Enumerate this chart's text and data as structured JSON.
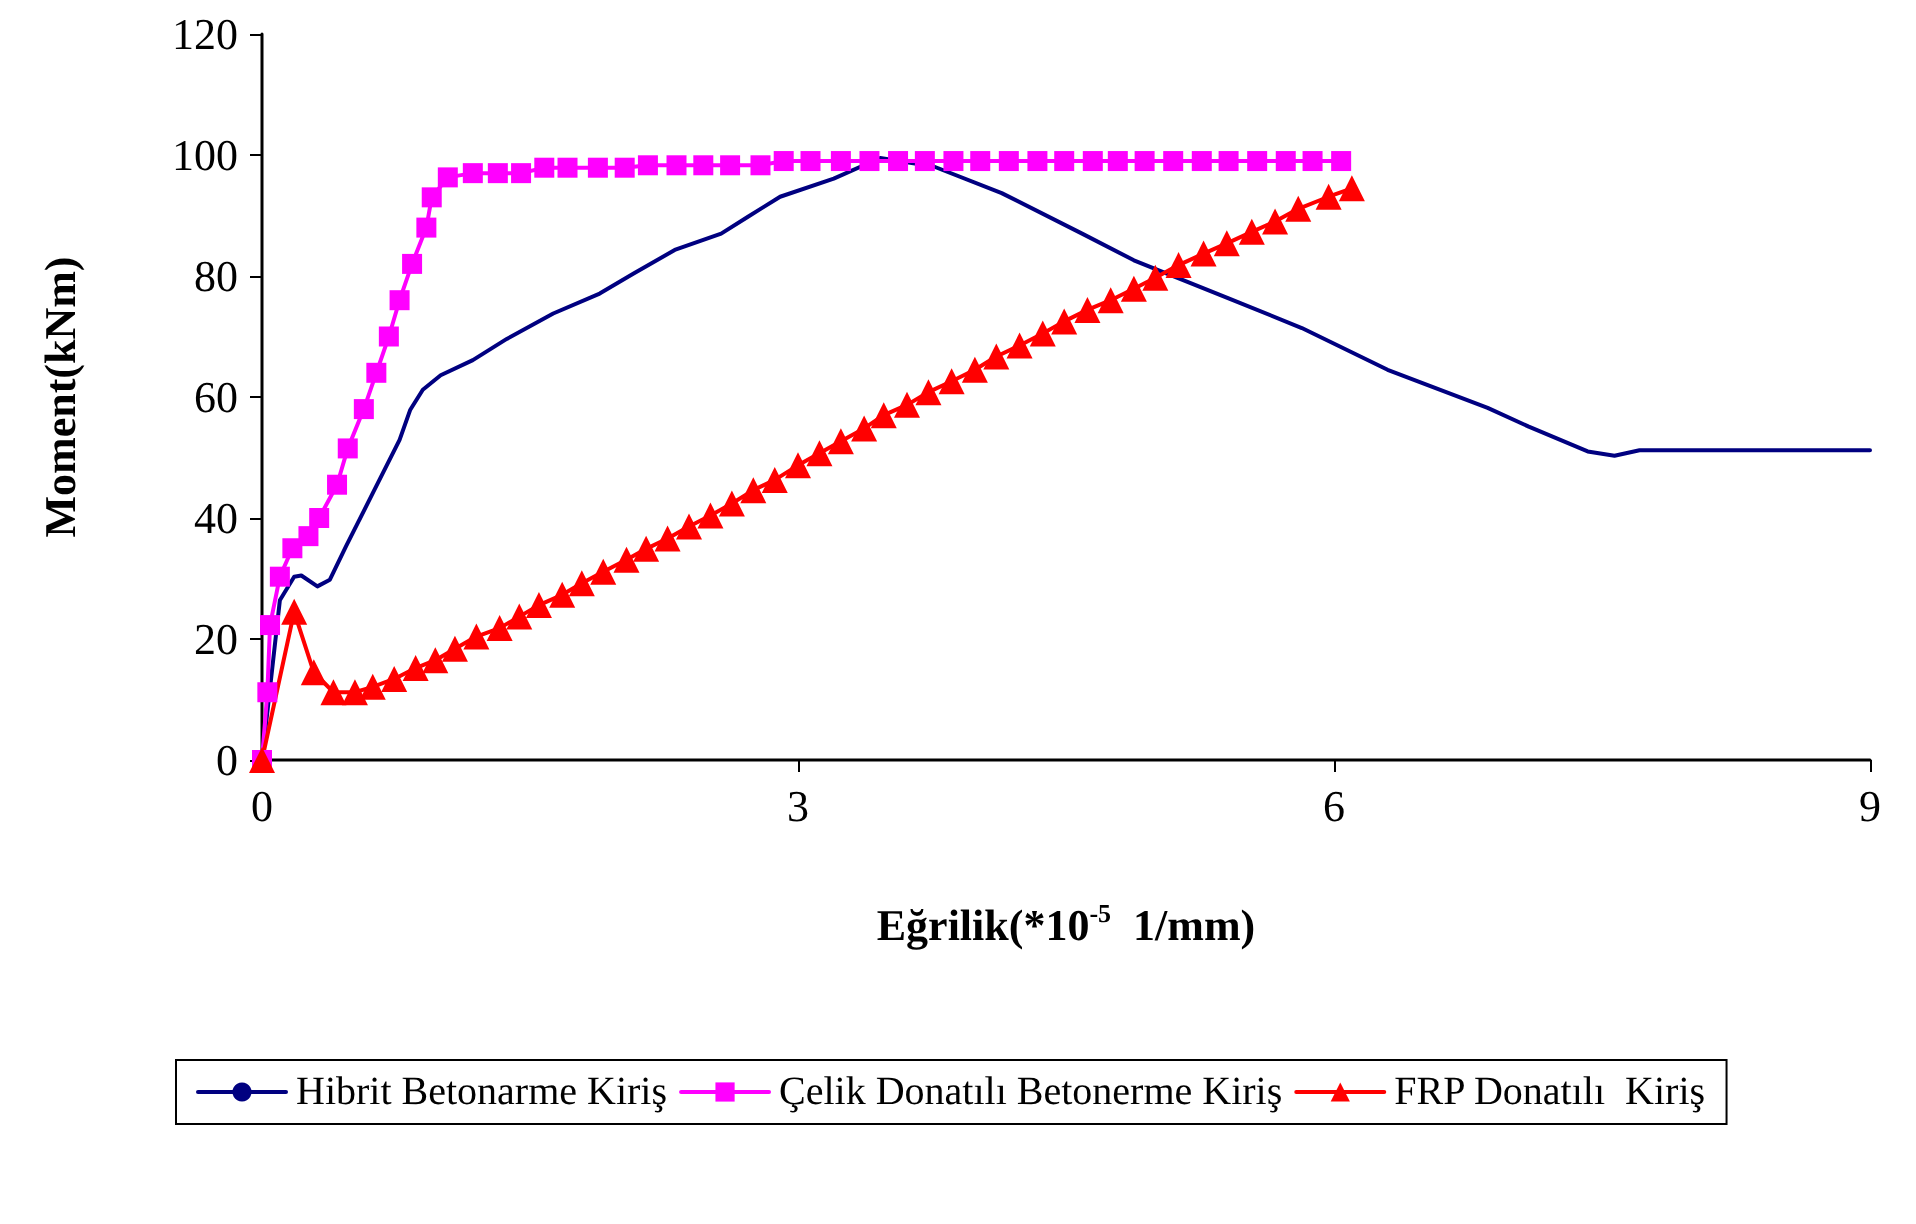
{
  "chart_data": {
    "type": "line",
    "xlabel": "Eğrilik(*10$^{-5}$  1/mm)",
    "ylabel": "Moment(kNm)",
    "xlim": [
      0,
      9
    ],
    "xticks": [
      0,
      3,
      6,
      9
    ],
    "ylim": [
      0,
      120
    ],
    "yticks": [
      0,
      20,
      40,
      60,
      80,
      100,
      120
    ],
    "grid": false,
    "legend": "bottom",
    "series": [
      {
        "name": "Hibrit Betonarme Kiriş",
        "color": "#000080",
        "marker": "none",
        "x": [
          0,
          0.1,
          0.18,
          0.22,
          0.31,
          0.38,
          0.47,
          0.62,
          0.77,
          0.83,
          0.9,
          1.0,
          1.18,
          1.37,
          1.63,
          1.89,
          2.08,
          2.31,
          2.57,
          2.72,
          2.9,
          3.2,
          3.46,
          3.76,
          4.14,
          4.59,
          4.88,
          5.41,
          5.82,
          6.3,
          6.86,
          7.09,
          7.42,
          7.57,
          7.71,
          9
        ],
        "values": [
          0,
          26.4,
          30.3,
          30.5,
          28.7,
          29.8,
          35.3,
          44.1,
          52.9,
          57.9,
          61.2,
          63.6,
          66.1,
          69.6,
          73.8,
          77.1,
          80.4,
          84.3,
          87.0,
          89.8,
          93.1,
          96.1,
          99.5,
          98.1,
          93.7,
          87.0,
          82.6,
          76.3,
          71.4,
          64.5,
          58.2,
          55.1,
          51.0,
          50.3,
          51.2,
          51.2
        ]
      },
      {
        "name": "Çelik Donatılı Betonerme Kiriş",
        "color": "#ff00ff",
        "marker": "square",
        "x": [
          0,
          0.03,
          0.045,
          0.1,
          0.17,
          0.26,
          0.32,
          0.42,
          0.48,
          0.57,
          0.64,
          0.71,
          0.77,
          0.84,
          0.92,
          0.95,
          1.04,
          1.18,
          1.32,
          1.45,
          1.58,
          1.71,
          1.88,
          2.03,
          2.16,
          2.32,
          2.47,
          2.62,
          2.79,
          2.92,
          3.07,
          3.24,
          3.4,
          3.56,
          3.71,
          3.87,
          4.02,
          4.18,
          4.34,
          4.49,
          4.65,
          4.79,
          4.94,
          5.1,
          5.26,
          5.41,
          5.57,
          5.73,
          5.88,
          6.04
        ],
        "values": [
          0,
          11.2,
          22.3,
          30.3,
          35,
          37,
          40,
          45.5,
          51.5,
          58,
          64,
          70,
          76,
          82,
          88,
          93,
          96.3,
          97,
          97,
          97,
          97.9,
          97.9,
          97.9,
          97.9,
          98.3,
          98.3,
          98.3,
          98.3,
          98.3,
          99,
          99,
          99,
          99,
          99,
          99,
          99,
          99,
          99,
          99,
          99,
          99,
          99,
          99,
          99,
          99,
          99,
          99,
          99,
          99,
          99
        ]
      },
      {
        "name": "FRP Donatılı  Kiriş",
        "color": "#ff0000",
        "marker": "triangle",
        "x": [
          0,
          0.18,
          0.29,
          0.4,
          0.52,
          0.62,
          0.74,
          0.86,
          0.97,
          1.08,
          1.2,
          1.33,
          1.44,
          1.55,
          1.68,
          1.79,
          1.91,
          2.04,
          2.15,
          2.27,
          2.39,
          2.51,
          2.63,
          2.75,
          2.87,
          3.0,
          3.12,
          3.24,
          3.37,
          3.48,
          3.61,
          3.73,
          3.86,
          3.99,
          4.11,
          4.24,
          4.37,
          4.49,
          4.62,
          4.75,
          4.88,
          5.0,
          5.13,
          5.27,
          5.4,
          5.54,
          5.67,
          5.8,
          5.97,
          6.1
        ],
        "values": [
          0,
          24.5,
          14.5,
          11.2,
          11.2,
          12.1,
          13.4,
          15.2,
          16.5,
          18.4,
          20.4,
          21.8,
          23.7,
          25.6,
          27.3,
          29.2,
          31.1,
          33.1,
          34.9,
          36.6,
          38.6,
          40.4,
          42.4,
          44.6,
          46.3,
          48.7,
          50.7,
          52.7,
          54.8,
          57.0,
          58.7,
          60.8,
          62.6,
          64.5,
          66.7,
          68.5,
          70.5,
          72.5,
          74.4,
          76.0,
          77.9,
          79.7,
          81.8,
          83.7,
          85.4,
          87.3,
          89.0,
          91.1,
          93.1,
          94.5
        ]
      }
    ]
  }
}
